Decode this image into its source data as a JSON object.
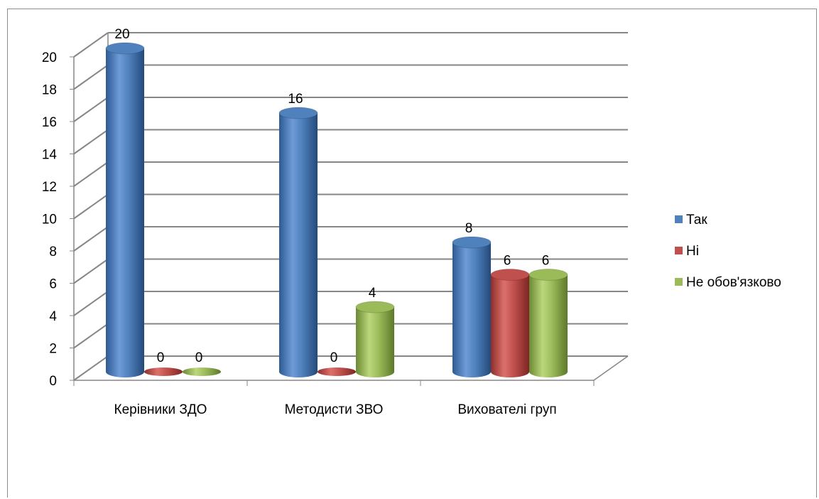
{
  "chart_data": {
    "type": "bar",
    "style": "3d-cylinder",
    "categories": [
      "Керівники ЗДО",
      "Методисти ЗВО",
      "Вихователі груп"
    ],
    "series": [
      {
        "name": "Так",
        "values": [
          20,
          16,
          8
        ],
        "color": "#4F81BD"
      },
      {
        "name": "Ні",
        "values": [
          0,
          0,
          6
        ],
        "color": "#C0504D"
      },
      {
        "name": "Не обов'язково",
        "values": [
          0,
          4,
          6
        ],
        "color": "#9BBB59"
      }
    ],
    "data_labels": [
      [
        "20",
        "16",
        "8"
      ],
      [
        "0",
        "0",
        "6"
      ],
      [
        "0",
        "4",
        "6"
      ]
    ],
    "yticks": [
      "0",
      "2",
      "4",
      "6",
      "8",
      "10",
      "12",
      "14",
      "16",
      "18",
      "20"
    ],
    "ylim": [
      0,
      20
    ],
    "grid": true,
    "legend_position": "right"
  }
}
